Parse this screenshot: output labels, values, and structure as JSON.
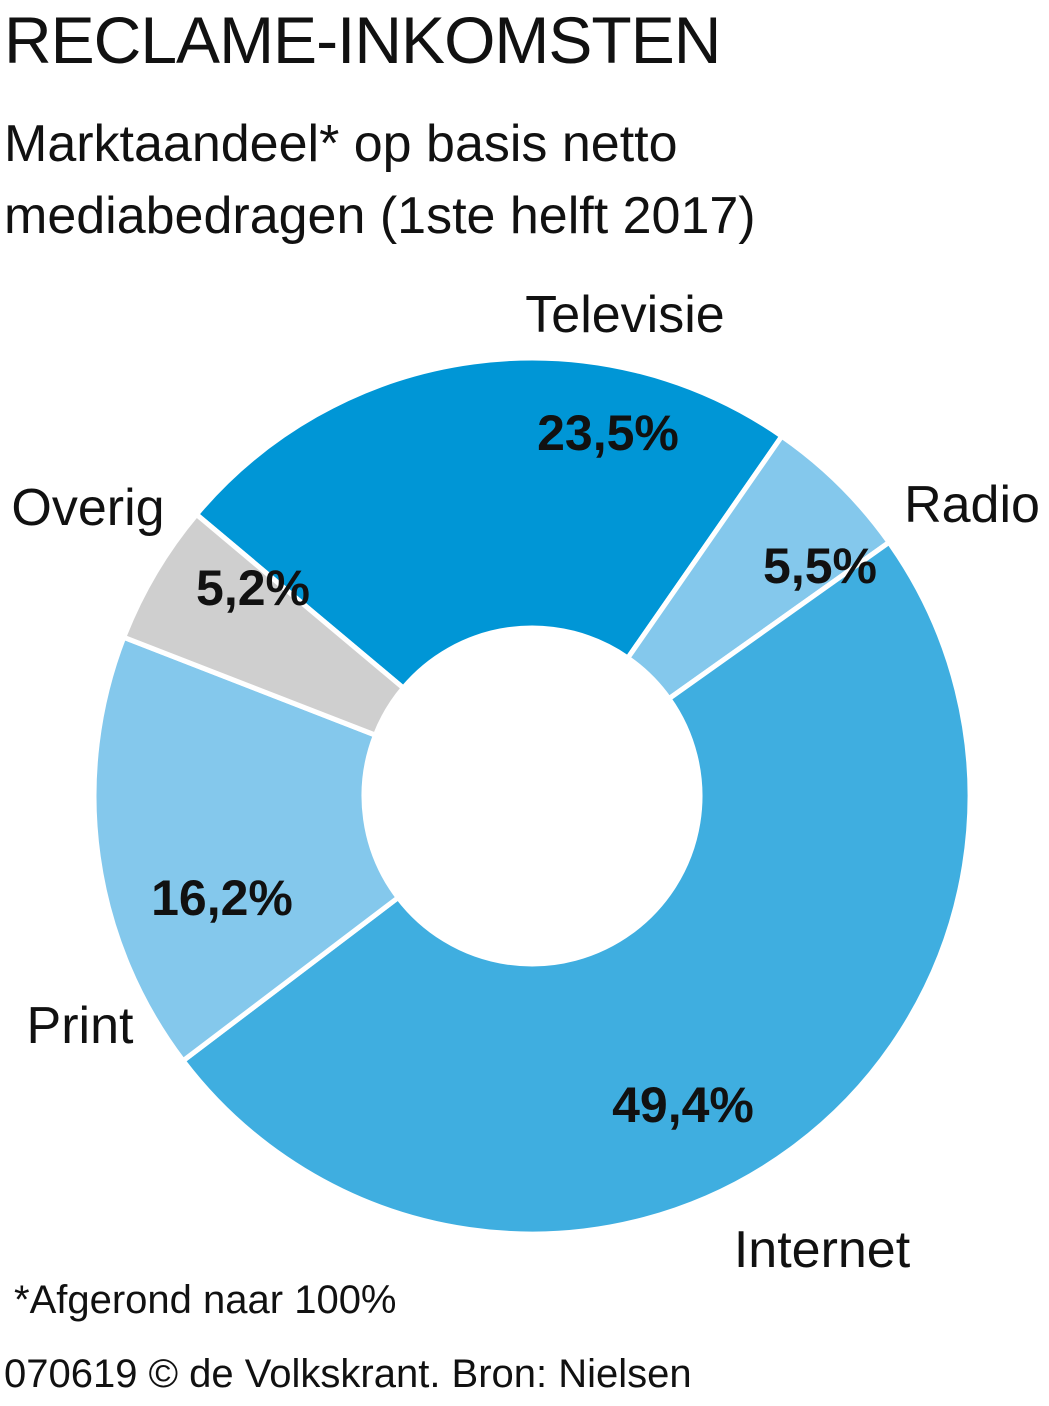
{
  "header": {
    "title": "RECLAME-INKOMSTEN",
    "subtitle_line1": "Marktaandeel* op basis netto",
    "subtitle_line2": "mediabedragen (1ste helft 2017)"
  },
  "chart_data": {
    "type": "donut",
    "title": "RECLAME-INKOMSTEN",
    "subtitle": "Marktaandeel* op basis netto mediabedragen (1ste helft 2017)",
    "unit": "%",
    "slices": [
      {
        "name": "Televisie",
        "value": 23.5,
        "label": "23,5%",
        "color": "#0096d6"
      },
      {
        "name": "Radio",
        "value": 5.5,
        "label": "5,5%",
        "color": "#84c8ec"
      },
      {
        "name": "Internet",
        "value": 49.4,
        "label": "49,4%",
        "color": "#3faee0"
      },
      {
        "name": "Print",
        "value": 16.2,
        "label": "16,2%",
        "color": "#84c8ec"
      },
      {
        "name": "Overig",
        "value": 5.2,
        "label": "5,2%",
        "color": "#cfcfcf"
      }
    ]
  },
  "footer": {
    "footnote": "*Afgerond naar 100%",
    "credit": "070619 © de Volkskrant. Bron: Nielsen"
  }
}
